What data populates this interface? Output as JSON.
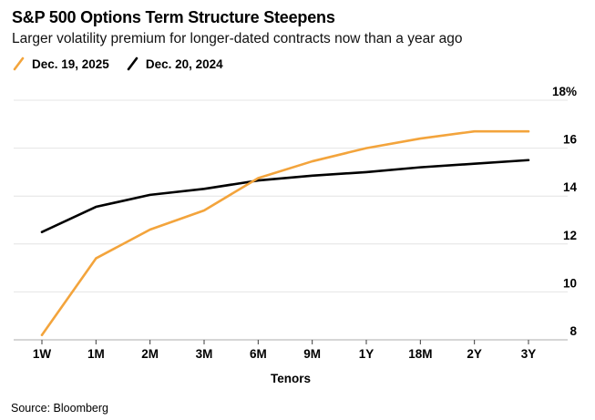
{
  "header": {
    "title": "S&P 500 Options Term Structure Steepens",
    "subtitle": "Larger volatility premium for longer-dated contracts now than a year ago"
  },
  "chart_data": {
    "type": "line",
    "categories": [
      "1W",
      "1M",
      "2M",
      "3M",
      "6M",
      "9M",
      "1Y",
      "18M",
      "2Y",
      "3Y"
    ],
    "series": [
      {
        "name": "Dec. 19, 2025",
        "color": "#F3A43C",
        "values": [
          8.2,
          11.4,
          12.6,
          13.4,
          14.75,
          15.45,
          16.0,
          16.4,
          16.7,
          16.7
        ]
      },
      {
        "name": "Dec. 20, 2024",
        "color": "#000000",
        "values": [
          12.5,
          13.55,
          14.05,
          14.3,
          14.65,
          14.85,
          15.0,
          15.2,
          15.35,
          15.5
        ]
      }
    ],
    "title": "S&P 500 Options Term Structure Steepens",
    "xlabel": "Tenors",
    "ylabel": "",
    "ylim": [
      8,
      18
    ],
    "y_ticks": [
      8,
      10,
      12,
      14,
      16,
      18
    ],
    "y_tick_labels": [
      "8",
      "10",
      "12",
      "14",
      "16",
      "18%"
    ],
    "y_axis_position": "right",
    "grid": "horizontal",
    "legend_position": "top-left"
  },
  "colors": {
    "gridline": "#E4E4E4",
    "axis_baseline": "#ADADAD",
    "tick_mark": "#3C3C3C"
  },
  "footer": {
    "source": "Source: Bloomberg"
  }
}
